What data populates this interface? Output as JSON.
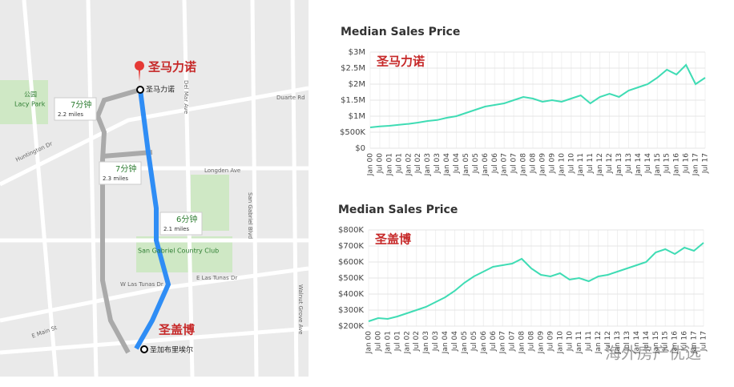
{
  "chart_data": [
    {
      "type": "line",
      "title": "Median Sales Price",
      "annotation": "圣马力诺",
      "categories": [
        "Jan 00",
        "Jul 00",
        "Jan 01",
        "Jul 01",
        "Jan 02",
        "Jul 02",
        "Jan 03",
        "Jul 03",
        "Jan 04",
        "Jul 04",
        "Jan 05",
        "Jul 05",
        "Jan 06",
        "Jul 06",
        "Jan 07",
        "Jul 07",
        "Jan 08",
        "Jul 08",
        "Jan 09",
        "Jul 09",
        "Jan 10",
        "Jul 10",
        "Jan 11",
        "Jul 11",
        "Jan 12",
        "Jul 12",
        "Jan 13",
        "Jul 13",
        "Jan 14",
        "Jul 14",
        "Jan 15",
        "Jul 15",
        "Jan 16",
        "Jul 16",
        "Jan 17",
        "Jul 17"
      ],
      "series": [
        {
          "color": "#3fdcb4",
          "values": [
            650000,
            680000,
            700000,
            730000,
            760000,
            800000,
            850000,
            880000,
            950000,
            1000000,
            1100000,
            1200000,
            1300000,
            1350000,
            1400000,
            1500000,
            1600000,
            1550000,
            1450000,
            1500000,
            1450000,
            1550000,
            1650000,
            1400000,
            1600000,
            1700000,
            1600000,
            1800000,
            1900000,
            2000000,
            2200000,
            2450000,
            2300000,
            2600000,
            2000000,
            2200000
          ]
        }
      ],
      "ylim": [
        0,
        3000000
      ],
      "yticks": [
        {
          "value": 0,
          "label": "$0"
        },
        {
          "value": 500000,
          "label": "$500K"
        },
        {
          "value": 1000000,
          "label": "$1M"
        },
        {
          "value": 1500000,
          "label": "$1.5M"
        },
        {
          "value": 2000000,
          "label": "$2M"
        },
        {
          "value": 2500000,
          "label": "$2.5M"
        },
        {
          "value": 3000000,
          "label": "$3M"
        }
      ],
      "grid": true
    },
    {
      "type": "line",
      "title": "Median Sales Price",
      "annotation": "圣盖博",
      "categories": [
        "Jan 00",
        "Jul 00",
        "Jan 01",
        "Jul 01",
        "Jan 02",
        "Jul 02",
        "Jan 03",
        "Jul 03",
        "Jan 04",
        "Jul 04",
        "Jan 05",
        "Jul 05",
        "Jan 06",
        "Jul 06",
        "Jan 07",
        "Jul 07",
        "Jan 08",
        "Jul 08",
        "Jan 09",
        "Jul 09",
        "Jan 10",
        "Jul 10",
        "Jan 11",
        "Jul 11",
        "Jan 12",
        "Jul 12",
        "Jan 13",
        "Jul 13",
        "Jan 14",
        "Jul 14",
        "Jan 15",
        "Jul 15",
        "Jan 16",
        "Jul 16",
        "Jan 17",
        "Jul 17"
      ],
      "series": [
        {
          "color": "#3fdcb4",
          "values": [
            230000,
            250000,
            245000,
            260000,
            280000,
            300000,
            320000,
            350000,
            380000,
            420000,
            470000,
            510000,
            540000,
            570000,
            580000,
            590000,
            620000,
            560000,
            520000,
            510000,
            530000,
            490000,
            500000,
            480000,
            510000,
            520000,
            540000,
            560000,
            580000,
            600000,
            660000,
            680000,
            650000,
            690000,
            670000,
            720000
          ]
        }
      ],
      "ylim": [
        200000,
        800000
      ],
      "yticks": [
        {
          "value": 200000,
          "label": "$200K"
        },
        {
          "value": 300000,
          "label": "$300K"
        },
        {
          "value": 400000,
          "label": "$400K"
        },
        {
          "value": 500000,
          "label": "$500K"
        },
        {
          "value": 600000,
          "label": "$600K"
        },
        {
          "value": 700000,
          "label": "$700K"
        },
        {
          "value": 800000,
          "label": "$800K"
        }
      ],
      "grid": true
    }
  ],
  "map": {
    "city_a": "圣马力诺",
    "city_a_pin": "圣马力诺",
    "city_b": "圣盖博",
    "city_b_pin": "圣加布里埃尔",
    "park": "公园",
    "park_name": "Lacy Park",
    "routes": [
      {
        "time": "7分钟",
        "distance": "2.2 miles"
      },
      {
        "time": "7分钟",
        "distance": "2.3 miles"
      },
      {
        "time": "6分钟",
        "distance": "2.1 miles"
      }
    ],
    "streets": [
      "Huntington Dr",
      "Duarte Rd",
      "Longden Ave",
      "W Las Tunas Dr",
      "E Las Tunas Dr",
      "E Main St",
      "Del Mar Ave",
      "San Gabriel Blvd",
      "Walnut Grove Ave"
    ],
    "club": "San Gabriel Country Club"
  },
  "watermark": "海外房产优选"
}
